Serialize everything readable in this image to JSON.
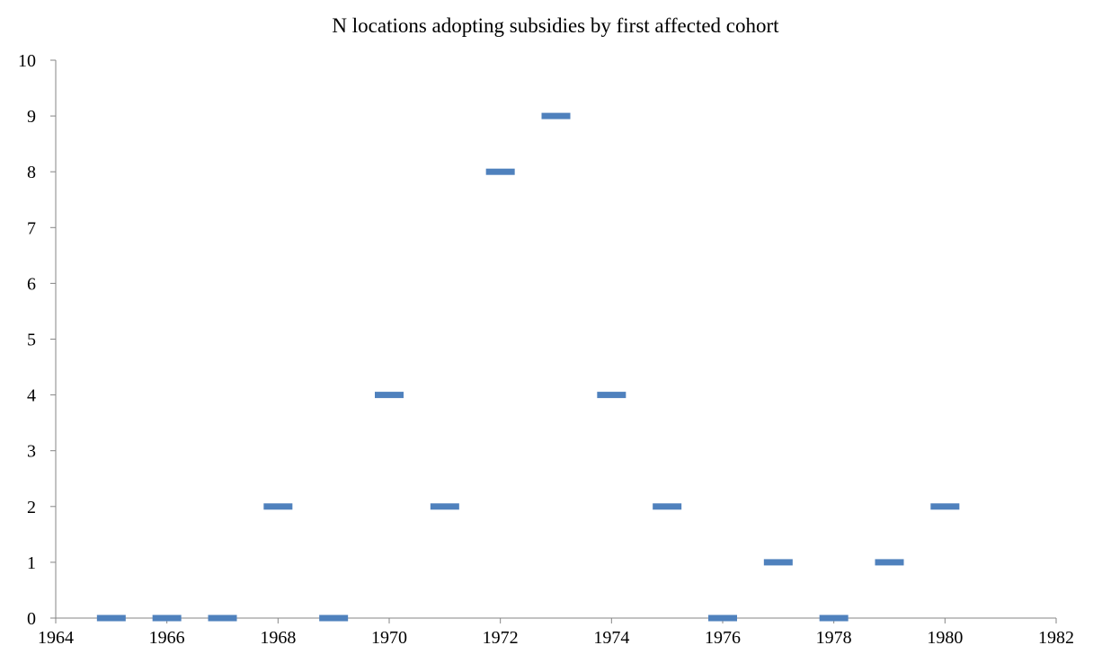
{
  "chart_data": {
    "type": "scatter",
    "title": "N locations adopting subsidies by first affected cohort",
    "x": [
      1965,
      1966,
      1967,
      1968,
      1969,
      1970,
      1971,
      1972,
      1973,
      1974,
      1975,
      1976,
      1977,
      1978,
      1979,
      1980
    ],
    "values": [
      0,
      0,
      0,
      2,
      0,
      4,
      2,
      8,
      9,
      4,
      2,
      0,
      1,
      0,
      1,
      2
    ],
    "color": "#4f81bd",
    "xlim": [
      1964,
      1982
    ],
    "xticks": [
      1964,
      1966,
      1968,
      1970,
      1972,
      1974,
      1976,
      1978,
      1980,
      1982
    ],
    "ylim": [
      0,
      10
    ],
    "yticks": [
      0,
      1,
      2,
      3,
      4,
      5,
      6,
      7,
      8,
      9,
      10
    ],
    "grid": false
  }
}
